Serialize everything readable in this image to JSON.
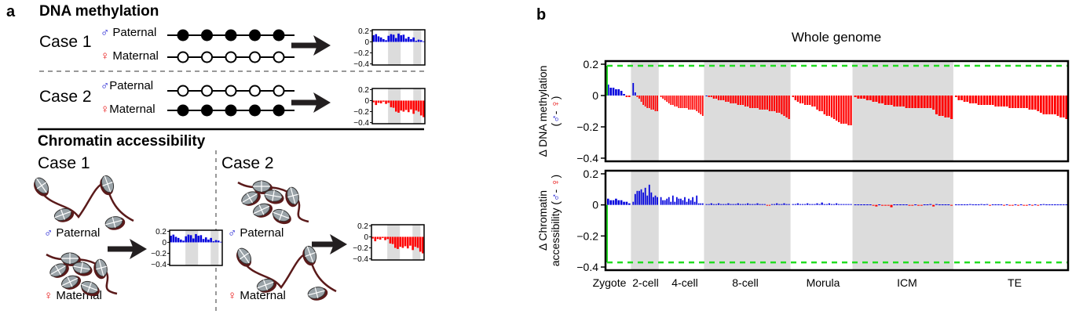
{
  "panel_a": {
    "letter": "a",
    "dna_methylation": {
      "title": "DNA methylation",
      "cases": [
        {
          "label": "Case 1",
          "paternal": {
            "symbol": "♂",
            "label": "Paternal",
            "methylated": true
          },
          "maternal": {
            "symbol": "♀",
            "label": "Maternal",
            "methylated": false
          },
          "result": "positive"
        },
        {
          "label": "Case 2",
          "paternal": {
            "symbol": "♂",
            "label": "Paternal",
            "methylated": false
          },
          "maternal": {
            "symbol": "♀",
            "label": "Maternal",
            "methylated": true
          },
          "result": "negative"
        }
      ]
    },
    "chromatin_accessibility": {
      "title": "Chromatin accessibility",
      "cases": [
        {
          "label": "Case 1",
          "paternal": {
            "symbol": "♂",
            "label": "Paternal",
            "state": "open"
          },
          "maternal": {
            "symbol": "♀",
            "label": "Maternal",
            "state": "compact"
          },
          "result": "positive"
        },
        {
          "label": "Case 2",
          "paternal": {
            "symbol": "♂",
            "label": "Paternal",
            "state": "compact"
          },
          "maternal": {
            "symbol": "♀",
            "label": "Maternal",
            "state": "open"
          },
          "result": "negative"
        }
      ]
    },
    "mini_chart": {
      "yticks": [
        "0.2",
        "0",
        "−0.2",
        "−0.4"
      ],
      "positive_values": [
        0.12,
        0.14,
        0.1,
        0.08,
        0.05,
        0.03,
        0.11,
        0.14,
        0.13,
        0.07,
        0.15,
        0.12,
        0.13,
        0.06,
        0.09,
        0.05,
        0.08,
        0.02,
        0.04,
        0.03,
        0.01
      ],
      "negative_values": [
        -0.03,
        -0.08,
        -0.04,
        -0.05,
        -0.02,
        -0.06,
        -0.04,
        -0.12,
        -0.13,
        -0.2,
        -0.22,
        -0.18,
        -0.2,
        -0.17,
        -0.21,
        -0.16,
        -0.24,
        -0.18,
        -0.2,
        -0.27,
        -0.3
      ]
    },
    "colors": {
      "male": "#1010d0",
      "female": "#e81010",
      "positive_bar": "#0000dd",
      "negative_bar": "#ff0000",
      "shade": "#dcdcdc"
    }
  },
  "panel_b": {
    "letter": "b"
  },
  "chart_data": [
    {
      "type": "bar",
      "title": "Whole genome",
      "ylabel": "Δ DNA methylation (♂ - ♀)",
      "ylabel_line1": "Δ DNA methylation",
      "ylabel_line2": "(♂- ♀)",
      "ylim": [
        -0.42,
        0.22
      ],
      "yticks": [
        0.2,
        0,
        -0.2,
        -0.4
      ],
      "ytick_labels": [
        "0.2",
        "0",
        "−0.2",
        "−0.4"
      ],
      "reference_line": 0.19,
      "stages": [
        "Zygote",
        "2-cell",
        "4-cell",
        "8-cell",
        "Morula",
        "ICM",
        "TE"
      ],
      "shaded_stages": [
        "2-cell",
        "8-cell",
        "ICM"
      ],
      "series": [
        {
          "stage": "Zygote",
          "values": [
            0.07,
            0.05,
            0.05,
            0.04,
            0.04,
            0.03,
            0.01,
            -0.01,
            -0.01
          ]
        },
        {
          "stage": "2-cell",
          "values": [
            0.08,
            0.02,
            -0.01,
            -0.02,
            -0.04,
            -0.06,
            -0.07,
            -0.08,
            -0.08,
            -0.09,
            -0.09,
            -0.1,
            -0.1
          ]
        },
        {
          "stage": "4-cell",
          "values": [
            -0.01,
            -0.02,
            -0.03,
            -0.04,
            -0.05,
            -0.06,
            -0.06,
            -0.07,
            -0.07,
            -0.08,
            -0.08,
            -0.08,
            -0.08,
            -0.08,
            -0.09,
            -0.09,
            -0.09,
            -0.09,
            -0.1,
            -0.11,
            -0.12,
            -0.13
          ]
        },
        {
          "stage": "8-cell",
          "values": [
            0.0,
            -0.01,
            -0.01,
            -0.02,
            -0.02,
            -0.03,
            -0.03,
            -0.03,
            -0.04,
            -0.04,
            -0.05,
            -0.05,
            -0.05,
            -0.06,
            -0.06,
            -0.06,
            -0.07,
            -0.07,
            -0.08,
            -0.08,
            -0.08,
            -0.08,
            -0.09,
            -0.09,
            -0.09,
            -0.09,
            -0.1,
            -0.1,
            -0.1,
            -0.11,
            -0.11,
            -0.12,
            -0.13,
            -0.14,
            -0.15
          ]
        },
        {
          "stage": "Morula",
          "values": [
            -0.01,
            -0.03,
            -0.04,
            -0.05,
            -0.05,
            -0.06,
            -0.06,
            -0.06,
            -0.07,
            -0.07,
            -0.09,
            -0.1,
            -0.1,
            -0.12,
            -0.13,
            -0.13,
            -0.14,
            -0.15,
            -0.16,
            -0.17,
            -0.18,
            -0.18,
            -0.18,
            -0.19,
            -0.19
          ]
        },
        {
          "stage": "ICM",
          "values": [
            -0.01,
            -0.02,
            -0.02,
            -0.02,
            -0.03,
            -0.03,
            -0.04,
            -0.04,
            -0.05,
            -0.05,
            -0.06,
            -0.06,
            -0.06,
            -0.07,
            -0.07,
            -0.07,
            -0.07,
            -0.08,
            -0.08,
            -0.08,
            -0.08,
            -0.08,
            -0.08,
            -0.08,
            -0.08,
            -0.08,
            -0.09,
            -0.12,
            -0.13,
            -0.13,
            -0.14,
            -0.14,
            -0.15
          ]
        },
        {
          "stage": "TE",
          "values": [
            -0.01,
            -0.03,
            -0.03,
            -0.04,
            -0.04,
            -0.05,
            -0.05,
            -0.05,
            -0.06,
            -0.06,
            -0.06,
            -0.06,
            -0.06,
            -0.06,
            -0.07,
            -0.07,
            -0.07,
            -0.07,
            -0.07,
            -0.08,
            -0.08,
            -0.08,
            -0.08,
            -0.08,
            -0.08,
            -0.08,
            -0.09,
            -0.09,
            -0.09,
            -0.1,
            -0.11,
            -0.12,
            -0.12,
            -0.12,
            -0.12,
            -0.12,
            -0.13,
            -0.14,
            -0.14,
            -0.15
          ]
        }
      ]
    },
    {
      "type": "bar",
      "title": "",
      "ylabel": "Δ Chromatin accessibility (♂ - ♀)",
      "ylabel_line1": "Δ Chromatin",
      "ylabel_line2": "accessibility (♂- ♀)",
      "ylim": [
        -0.42,
        0.22
      ],
      "yticks": [
        0.2,
        0,
        -0.2,
        -0.4
      ],
      "ytick_labels": [
        "0.2",
        "0",
        "−0.2",
        "−0.4"
      ],
      "reference_line": -0.37,
      "stages": [
        "Zygote",
        "2-cell",
        "4-cell",
        "8-cell",
        "Morula",
        "ICM",
        "TE"
      ],
      "shaded_stages": [
        "2-cell",
        "8-cell",
        "ICM"
      ],
      "series": [
        {
          "stage": "Zygote",
          "values": [
            0.04,
            0.03,
            0.03,
            0.04,
            0.03,
            0.03,
            0.02,
            0.02,
            0.01
          ]
        },
        {
          "stage": "2-cell",
          "values": [
            0.02,
            0.07,
            0.09,
            0.09,
            0.1,
            0.08,
            0.11,
            0.06,
            0.13,
            0.08,
            0.05,
            0.06,
            0.05
          ]
        },
        {
          "stage": "4-cell",
          "values": [
            0.05,
            0.03,
            0.03,
            0.04,
            0.05,
            0.02,
            0.06,
            0.02,
            0.05,
            0.04,
            0.04,
            0.03,
            0.05,
            0.02,
            0.04,
            0.03,
            0.05,
            0.02,
            0.06,
            0.01,
            0.01,
            0.01
          ]
        },
        {
          "stage": "8-cell",
          "values": [
            0.005,
            0.005,
            0.01,
            0.005,
            0.005,
            0.01,
            0.005,
            0.005,
            0.005,
            0.01,
            0.005,
            0.005,
            0.005,
            0.01,
            0.005,
            0.005,
            0.005,
            0.01,
            0.005,
            0.005,
            0.005,
            0.01,
            0.005,
            0.005,
            0.005,
            -0.005,
            -0.005,
            0.005,
            0.005,
            0.01,
            0.005,
            0.005,
            0.01,
            0.005,
            0.005
          ]
        },
        {
          "stage": "Morula",
          "values": [
            0.005,
            0.005,
            0.01,
            0.005,
            0.005,
            0.005,
            0.01,
            0.005,
            0.005,
            0.005,
            0.01,
            0.005,
            0.015,
            0.005,
            0.005,
            0.01,
            0.005,
            0.005,
            0.01,
            0.005,
            0.005,
            0.005,
            0.005,
            0.005,
            0.005
          ]
        },
        {
          "stage": "ICM",
          "values": [
            0.003,
            0.003,
            0.003,
            0.003,
            0.003,
            0.003,
            -0.005,
            -0.01,
            0.003,
            -0.005,
            -0.003,
            -0.005,
            -0.015,
            0.003,
            0.003,
            0.003,
            0.003,
            0.003,
            -0.005,
            -0.005,
            0.003,
            -0.005,
            -0.003,
            0.003,
            0.003,
            0.005,
            -0.01,
            0.005,
            0.003,
            0.003,
            0.003,
            0.003,
            -0.003
          ]
        },
        {
          "stage": "TE",
          "values": [
            0.003,
            0.003,
            0.003,
            0.003,
            0.003,
            0.005,
            0.003,
            0.003,
            0.003,
            0.005,
            0.003,
            0.005,
            -0.003,
            0.003,
            0.003,
            0.003,
            0.003,
            -0.003,
            0.003,
            -0.005,
            -0.005,
            0.003,
            -0.003,
            0.003,
            -0.003,
            -0.005,
            0.003,
            -0.003,
            0.003,
            -0.003,
            0.003,
            0.005,
            0.003,
            0.003,
            0.003,
            0.003,
            0.003,
            0.003,
            0.003,
            0.003
          ]
        }
      ]
    }
  ]
}
